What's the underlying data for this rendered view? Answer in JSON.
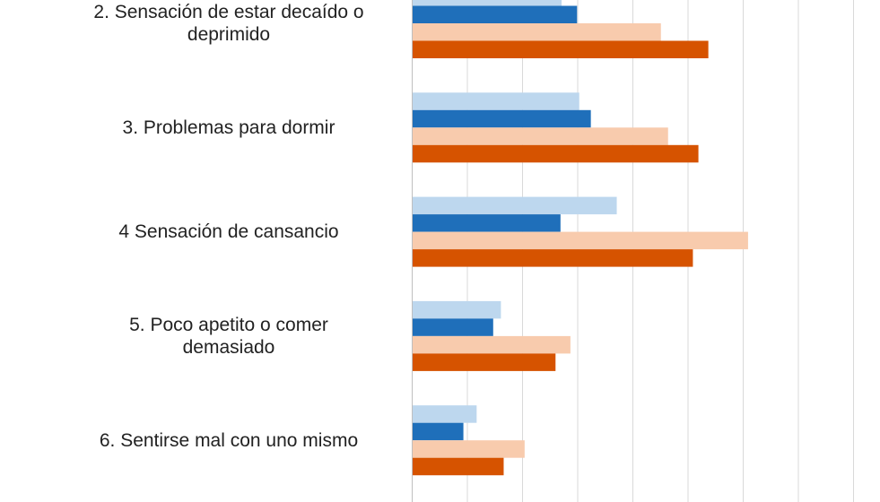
{
  "chart_data": {
    "type": "bar",
    "orientation": "horizontal",
    "categories": [
      [
        "2. Sensación de estar decaído o",
        "deprimido"
      ],
      [
        "3. Problemas para dormir"
      ],
      [
        "4 Sensación de cansancio"
      ],
      [
        "5. Poco apetito o comer",
        "demasiado"
      ],
      [
        "6. Sentirse mal con uno mismo"
      ]
    ],
    "series": [
      {
        "color": "#bdd7ee",
        "values": [
          27.0,
          30.2,
          37.0,
          16.0,
          11.6
        ]
      },
      {
        "color": "#1f6fba",
        "values": [
          29.8,
          32.3,
          26.8,
          14.6,
          9.2
        ]
      },
      {
        "color": "#f8cbad",
        "values": [
          45.0,
          46.3,
          60.8,
          28.6,
          20.3
        ]
      },
      {
        "color": "#d65300",
        "values": [
          53.6,
          51.8,
          50.8,
          25.9,
          16.5
        ]
      }
    ],
    "xlim": [
      0,
      90
    ],
    "x_tick_step": 10,
    "grid": true,
    "legend": "none"
  }
}
